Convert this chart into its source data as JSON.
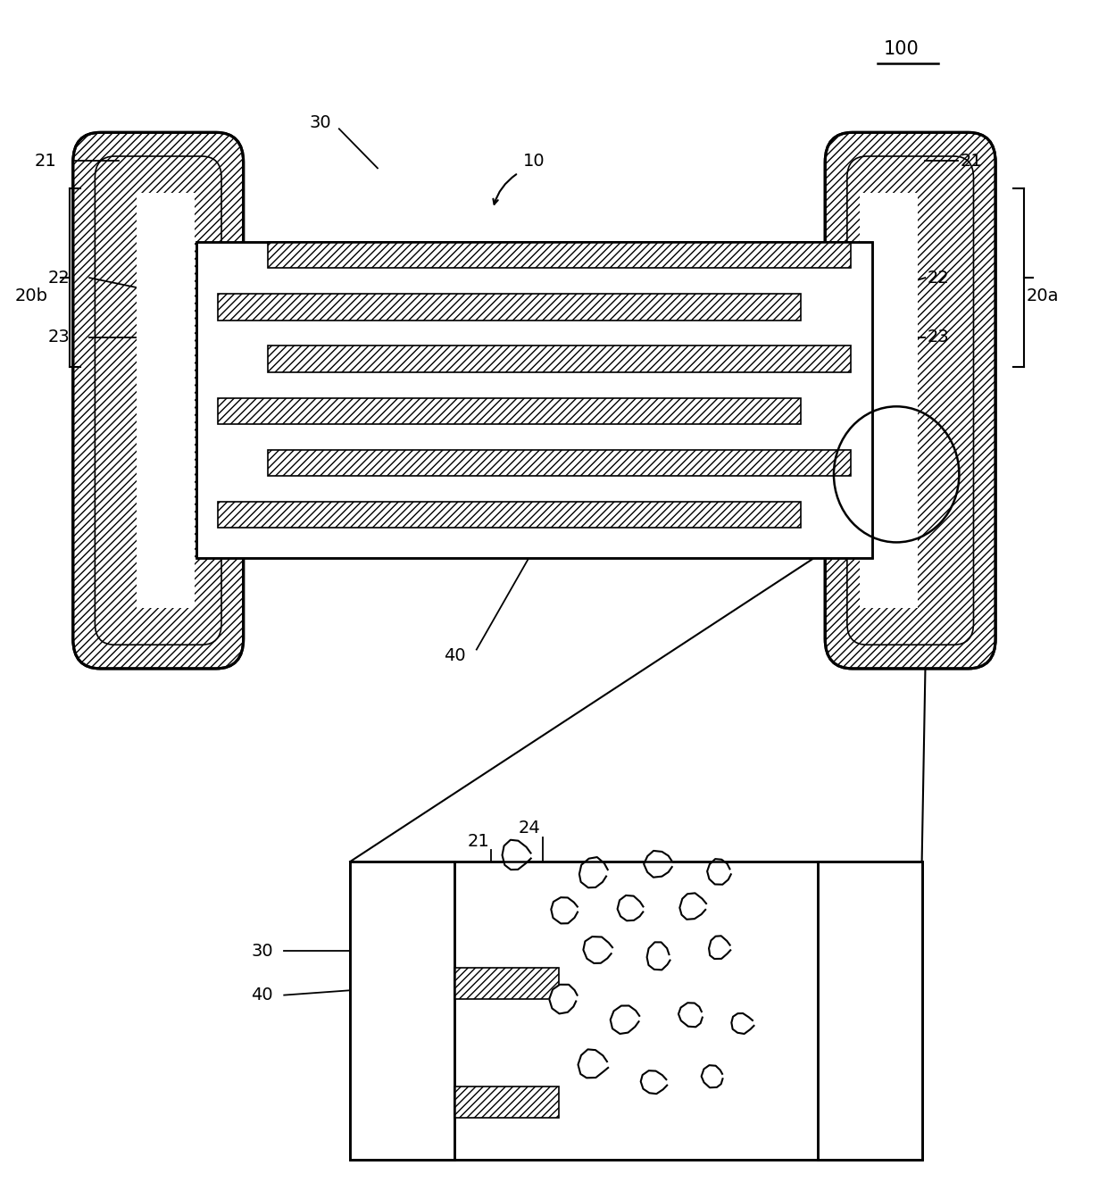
{
  "bg_color": "#ffffff",
  "line_color": "#000000",
  "fig_width": 12.4,
  "fig_height": 13.43
}
